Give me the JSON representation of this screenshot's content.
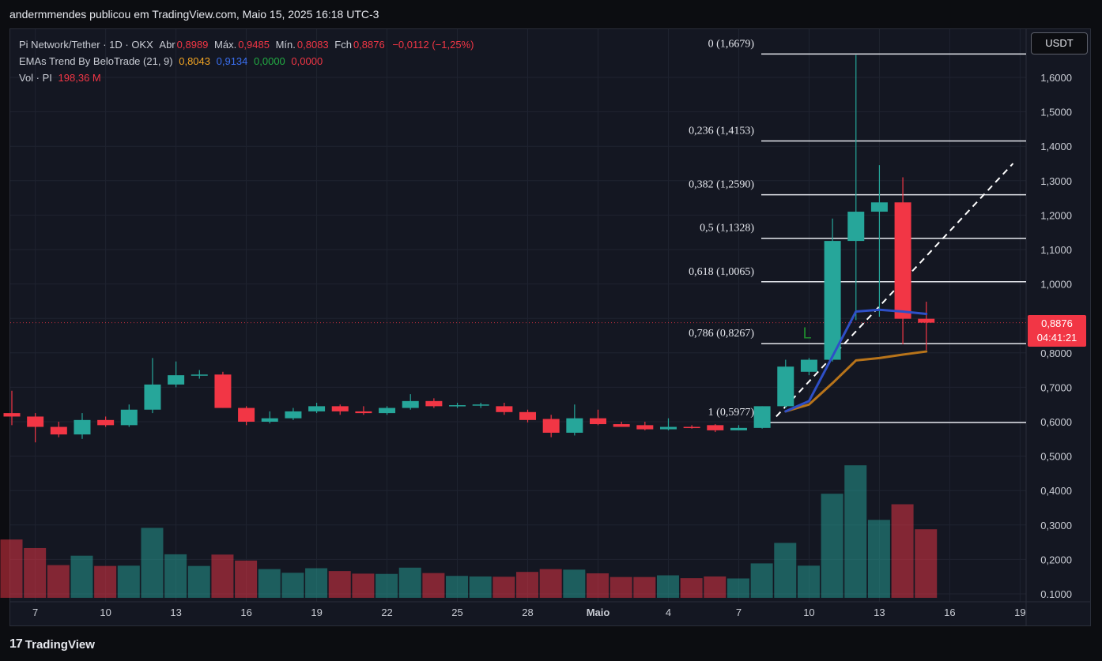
{
  "header": {
    "attribution": "andermmendes publicou em TradingView.com, Maio 15, 2025 16:18 UTC-3"
  },
  "legend": {
    "symbol": "Pi Network/Tether · 1D · OKX",
    "open_label": "Abr",
    "open": "0,8989",
    "high_label": "Máx.",
    "high": "0,9485",
    "low_label": "Mín.",
    "low": "0,8083",
    "close_label": "Fch",
    "close": "0,8876",
    "change": "−0,0112 (−1,25%)",
    "ema_title": "EMAs Trend By BeloTrade (21, 9)",
    "ema_values": [
      "0,8043",
      "0,9134",
      "0,0000",
      "0,0000"
    ],
    "vol_title": "Vol · PI",
    "vol_value": "198,36 M"
  },
  "axis": {
    "unit_button": "USDT",
    "current_price": "0,8876",
    "countdown": "04:41:21"
  },
  "colors": {
    "up": "#26a69a",
    "down": "#f23645",
    "ema_long": "#b8741a",
    "ema_short": "#2e4fc7",
    "background": "#141722"
  },
  "footer": {
    "brand_mark": "17",
    "brand": "TradingView"
  },
  "chart_data": {
    "type": "candlestick",
    "ylim": [
      0.075,
      1.72
    ],
    "y_ticks": [
      0.1,
      0.2,
      0.3,
      0.4,
      0.5,
      0.6,
      0.7,
      0.8,
      0.9,
      1.0,
      1.1,
      1.2,
      1.3,
      1.4,
      1.5,
      1.6
    ],
    "y_tick_labels": [
      "0.1000",
      "0,2000",
      "0,3000",
      "0,4000",
      "0,5000",
      "0,6000",
      "0,7000",
      "0,8000",
      "0,9000",
      "1,0000",
      "1,1000",
      "1,2000",
      "1,3000",
      "1,4000",
      "1,5000",
      "1,6000"
    ],
    "x_tick_labels": [
      {
        "i": 1,
        "label": "7"
      },
      {
        "i": 4,
        "label": "10"
      },
      {
        "i": 7,
        "label": "13"
      },
      {
        "i": 10,
        "label": "16"
      },
      {
        "i": 13,
        "label": "19"
      },
      {
        "i": 16,
        "label": "22"
      },
      {
        "i": 19,
        "label": "25"
      },
      {
        "i": 22,
        "label": "28"
      },
      {
        "i": 25,
        "label": "Maio"
      },
      {
        "i": 28,
        "label": "4"
      },
      {
        "i": 31,
        "label": "7"
      },
      {
        "i": 34,
        "label": "10"
      },
      {
        "i": 37,
        "label": "13"
      },
      {
        "i": 40,
        "label": "16"
      },
      {
        "i": 43,
        "label": "19"
      }
    ],
    "candles": [
      {
        "o": 0.625,
        "h": 0.69,
        "l": 0.59,
        "c": 0.615
      },
      {
        "o": 0.615,
        "h": 0.625,
        "l": 0.54,
        "c": 0.585
      },
      {
        "o": 0.585,
        "h": 0.6,
        "l": 0.555,
        "c": 0.563
      },
      {
        "o": 0.563,
        "h": 0.625,
        "l": 0.55,
        "c": 0.605
      },
      {
        "o": 0.605,
        "h": 0.615,
        "l": 0.585,
        "c": 0.59
      },
      {
        "o": 0.59,
        "h": 0.65,
        "l": 0.585,
        "c": 0.635
      },
      {
        "o": 0.635,
        "h": 0.785,
        "l": 0.625,
        "c": 0.708
      },
      {
        "o": 0.708,
        "h": 0.775,
        "l": 0.7,
        "c": 0.735
      },
      {
        "o": 0.735,
        "h": 0.75,
        "l": 0.725,
        "c": 0.737
      },
      {
        "o": 0.737,
        "h": 0.745,
        "l": 0.64,
        "c": 0.64
      },
      {
        "o": 0.64,
        "h": 0.645,
        "l": 0.59,
        "c": 0.6
      },
      {
        "o": 0.6,
        "h": 0.63,
        "l": 0.595,
        "c": 0.61
      },
      {
        "o": 0.61,
        "h": 0.64,
        "l": 0.605,
        "c": 0.63
      },
      {
        "o": 0.63,
        "h": 0.655,
        "l": 0.625,
        "c": 0.645
      },
      {
        "o": 0.645,
        "h": 0.65,
        "l": 0.62,
        "c": 0.63
      },
      {
        "o": 0.63,
        "h": 0.645,
        "l": 0.62,
        "c": 0.625
      },
      {
        "o": 0.625,
        "h": 0.645,
        "l": 0.62,
        "c": 0.64
      },
      {
        "o": 0.64,
        "h": 0.68,
        "l": 0.635,
        "c": 0.66
      },
      {
        "o": 0.66,
        "h": 0.668,
        "l": 0.64,
        "c": 0.645
      },
      {
        "o": 0.645,
        "h": 0.655,
        "l": 0.64,
        "c": 0.648
      },
      {
        "o": 0.648,
        "h": 0.655,
        "l": 0.64,
        "c": 0.65
      },
      {
        "o": 0.645,
        "h": 0.655,
        "l": 0.62,
        "c": 0.628
      },
      {
        "o": 0.628,
        "h": 0.635,
        "l": 0.598,
        "c": 0.605
      },
      {
        "o": 0.608,
        "h": 0.62,
        "l": 0.555,
        "c": 0.568
      },
      {
        "o": 0.568,
        "h": 0.65,
        "l": 0.56,
        "c": 0.61
      },
      {
        "o": 0.61,
        "h": 0.635,
        "l": 0.59,
        "c": 0.593
      },
      {
        "o": 0.593,
        "h": 0.6,
        "l": 0.585,
        "c": 0.585
      },
      {
        "o": 0.59,
        "h": 0.6,
        "l": 0.575,
        "c": 0.578
      },
      {
        "o": 0.578,
        "h": 0.61,
        "l": 0.575,
        "c": 0.585
      },
      {
        "o": 0.585,
        "h": 0.59,
        "l": 0.58,
        "c": 0.583
      },
      {
        "o": 0.59,
        "h": 0.593,
        "l": 0.57,
        "c": 0.575
      },
      {
        "o": 0.575,
        "h": 0.59,
        "l": 0.575,
        "c": 0.582
      },
      {
        "o": 0.582,
        "h": 0.645,
        "l": 0.58,
        "c": 0.645
      },
      {
        "o": 0.645,
        "h": 0.78,
        "l": 0.64,
        "c": 0.76
      },
      {
        "o": 0.745,
        "h": 0.785,
        "l": 0.735,
        "c": 0.78
      },
      {
        "o": 0.78,
        "h": 1.19,
        "l": 0.775,
        "c": 1.125
      },
      {
        "o": 1.125,
        "h": 1.665,
        "l": 0.895,
        "c": 1.21
      },
      {
        "o": 1.21,
        "h": 1.345,
        "l": 0.905,
        "c": 1.237
      },
      {
        "o": 1.237,
        "h": 1.31,
        "l": 0.825,
        "c": 0.899
      },
      {
        "o": 0.899,
        "h": 0.9485,
        "l": 0.8083,
        "c": 0.8876
      }
    ],
    "volume": [
      0.244,
      0.214,
      0.154,
      0.187,
      0.151,
      0.152,
      0.285,
      0.192,
      0.151,
      0.191,
      0.17,
      0.14,
      0.127,
      0.143,
      0.133,
      0.124,
      0.123,
      0.145,
      0.126,
      0.116,
      0.114,
      0.113,
      0.13,
      0.14,
      0.138,
      0.125,
      0.112,
      0.112,
      0.118,
      0.108,
      0.114,
      0.107,
      0.16,
      0.232,
      0.152,
      0.405,
      0.505,
      0.313,
      0.368,
      0.28
    ],
    "ema_long": {
      "name": "EMA 21",
      "points": [
        {
          "i": 33,
          "v": 0.63
        },
        {
          "i": 34,
          "v": 0.65
        },
        {
          "i": 35,
          "v": 0.712
        },
        {
          "i": 36,
          "v": 0.778
        },
        {
          "i": 37,
          "v": 0.785
        },
        {
          "i": 38,
          "v": 0.795
        },
        {
          "i": 39,
          "v": 0.804
        }
      ]
    },
    "ema_short": {
      "name": "EMA 9",
      "points": [
        {
          "i": 33,
          "v": 0.63
        },
        {
          "i": 34,
          "v": 0.66
        },
        {
          "i": 35,
          "v": 0.79
        },
        {
          "i": 36,
          "v": 0.92
        },
        {
          "i": 37,
          "v": 0.925
        },
        {
          "i": 38,
          "v": 0.92
        },
        {
          "i": 39,
          "v": 0.913
        }
      ]
    },
    "trend_line": {
      "from": {
        "i": 32.6,
        "v": 0.615
      },
      "to": {
        "i": 42.7,
        "v": 1.35
      }
    },
    "fib_levels": [
      {
        "ratio": "0",
        "price": 1.6679,
        "label": "0 (1,6679)"
      },
      {
        "ratio": "0,236",
        "price": 1.4153,
        "label": "0,236 (1,4153)"
      },
      {
        "ratio": "0,382",
        "price": 1.259,
        "label": "0,382 (1,2590)"
      },
      {
        "ratio": "0,5",
        "price": 1.1328,
        "label": "0,5 (1,1328)"
      },
      {
        "ratio": "0,618",
        "price": 1.0065,
        "label": "0,618 (1,0065)"
      },
      {
        "ratio": "0,786",
        "price": 0.8267,
        "label": "0,786 (0,8267)"
      },
      {
        "ratio": "1",
        "price": 0.5977,
        "label": "1 (0,5977)"
      }
    ],
    "marker": {
      "i": 34.0,
      "v": 0.86,
      "label": "L"
    },
    "current_price_value": 0.8876
  }
}
